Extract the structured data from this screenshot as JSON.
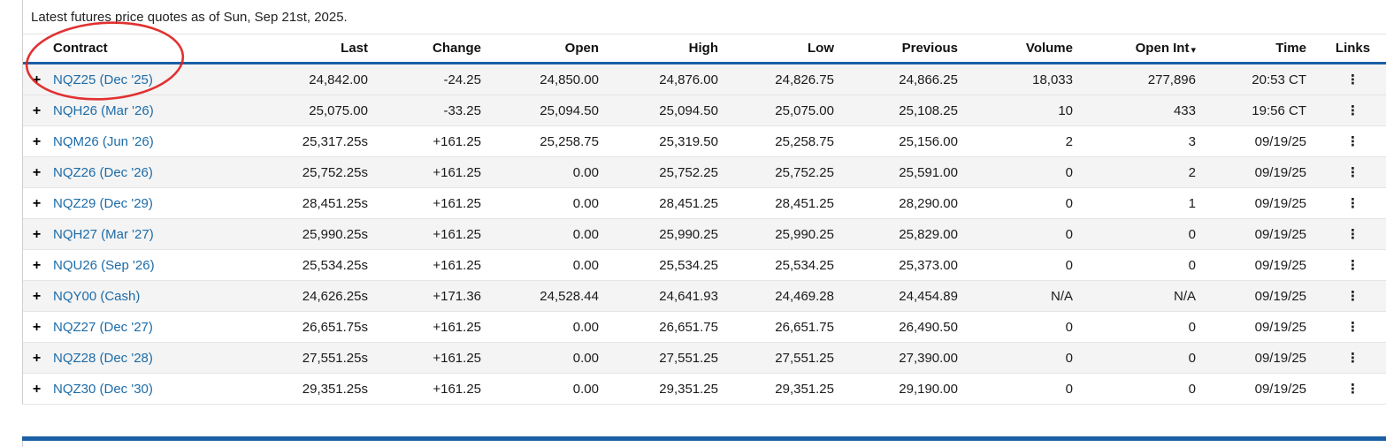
{
  "caption": "Latest futures price quotes as of Sun, Sep 21st, 2025.",
  "columns": [
    {
      "key": "contract",
      "label": "Contract",
      "align": "left"
    },
    {
      "key": "last",
      "label": "Last",
      "align": "right"
    },
    {
      "key": "change",
      "label": "Change",
      "align": "right"
    },
    {
      "key": "open",
      "label": "Open",
      "align": "right"
    },
    {
      "key": "high",
      "label": "High",
      "align": "right"
    },
    {
      "key": "low",
      "label": "Low",
      "align": "right"
    },
    {
      "key": "previous",
      "label": "Previous",
      "align": "right"
    },
    {
      "key": "volume",
      "label": "Volume",
      "align": "right"
    },
    {
      "key": "open_int",
      "label": "Open Int",
      "align": "right",
      "sorted": "desc"
    },
    {
      "key": "time",
      "label": "Time",
      "align": "right"
    },
    {
      "key": "links",
      "label": "Links",
      "align": "center"
    }
  ],
  "icons": {
    "expand_icon": "+",
    "sort_desc_icon": "▾",
    "links_menu_icon": "⋮"
  },
  "colors": {
    "accent_blue": "#1a5fa5",
    "link_blue": "#1d6ca8",
    "negative_red": "#cb3344",
    "positive_green": "#14805e",
    "annotation_red": "#e01f1f"
  },
  "rows": [
    {
      "contract": "NQZ25 (Dec '25)",
      "last": "24,842.00",
      "change": "-24.25",
      "change_dir": "neg",
      "open": "24,850.00",
      "high": "24,876.00",
      "low": "24,826.75",
      "previous": "24,866.25",
      "volume": "18,033",
      "open_int": "277,896",
      "time": "20:53 CT"
    },
    {
      "contract": "NQH26 (Mar '26)",
      "last": "25,075.00",
      "change": "-33.25",
      "change_dir": "neg",
      "open": "25,094.50",
      "high": "25,094.50",
      "low": "25,075.00",
      "previous": "25,108.25",
      "volume": "10",
      "open_int": "433",
      "time": "19:56 CT"
    },
    {
      "contract": "NQM26 (Jun '26)",
      "last": "25,317.25s",
      "change": "+161.25",
      "change_dir": "pos",
      "open": "25,258.75",
      "high": "25,319.50",
      "low": "25,258.75",
      "previous": "25,156.00",
      "volume": "2",
      "open_int": "3",
      "time": "09/19/25"
    },
    {
      "contract": "NQZ26 (Dec '26)",
      "last": "25,752.25s",
      "change": "+161.25",
      "change_dir": "pos",
      "open": "0.00",
      "high": "25,752.25",
      "low": "25,752.25",
      "previous": "25,591.00",
      "volume": "0",
      "open_int": "2",
      "time": "09/19/25"
    },
    {
      "contract": "NQZ29 (Dec '29)",
      "last": "28,451.25s",
      "change": "+161.25",
      "change_dir": "pos",
      "open": "0.00",
      "high": "28,451.25",
      "low": "28,451.25",
      "previous": "28,290.00",
      "volume": "0",
      "open_int": "1",
      "time": "09/19/25"
    },
    {
      "contract": "NQH27 (Mar '27)",
      "last": "25,990.25s",
      "change": "+161.25",
      "change_dir": "pos",
      "open": "0.00",
      "high": "25,990.25",
      "low": "25,990.25",
      "previous": "25,829.00",
      "volume": "0",
      "open_int": "0",
      "time": "09/19/25"
    },
    {
      "contract": "NQU26 (Sep '26)",
      "last": "25,534.25s",
      "change": "+161.25",
      "change_dir": "pos",
      "open": "0.00",
      "high": "25,534.25",
      "low": "25,534.25",
      "previous": "25,373.00",
      "volume": "0",
      "open_int": "0",
      "time": "09/19/25"
    },
    {
      "contract": "NQY00 (Cash)",
      "last": "24,626.25s",
      "change": "+171.36",
      "change_dir": "pos",
      "open": "24,528.44",
      "high": "24,641.93",
      "low": "24,469.28",
      "previous": "24,454.89",
      "volume": "N/A",
      "open_int": "N/A",
      "time": "09/19/25"
    },
    {
      "contract": "NQZ27 (Dec '27)",
      "last": "26,651.75s",
      "change": "+161.25",
      "change_dir": "pos",
      "open": "0.00",
      "high": "26,651.75",
      "low": "26,651.75",
      "previous": "26,490.50",
      "volume": "0",
      "open_int": "0",
      "time": "09/19/25"
    },
    {
      "contract": "NQZ28 (Dec '28)",
      "last": "27,551.25s",
      "change": "+161.25",
      "change_dir": "pos",
      "open": "0.00",
      "high": "27,551.25",
      "low": "27,551.25",
      "previous": "27,390.00",
      "volume": "0",
      "open_int": "0",
      "time": "09/19/25"
    },
    {
      "contract": "NQZ30 (Dec '30)",
      "last": "29,351.25s",
      "change": "+161.25",
      "change_dir": "pos",
      "open": "0.00",
      "high": "29,351.25",
      "low": "29,351.25",
      "previous": "29,190.00",
      "volume": "0",
      "open_int": "0",
      "time": "09/19/25"
    }
  ]
}
